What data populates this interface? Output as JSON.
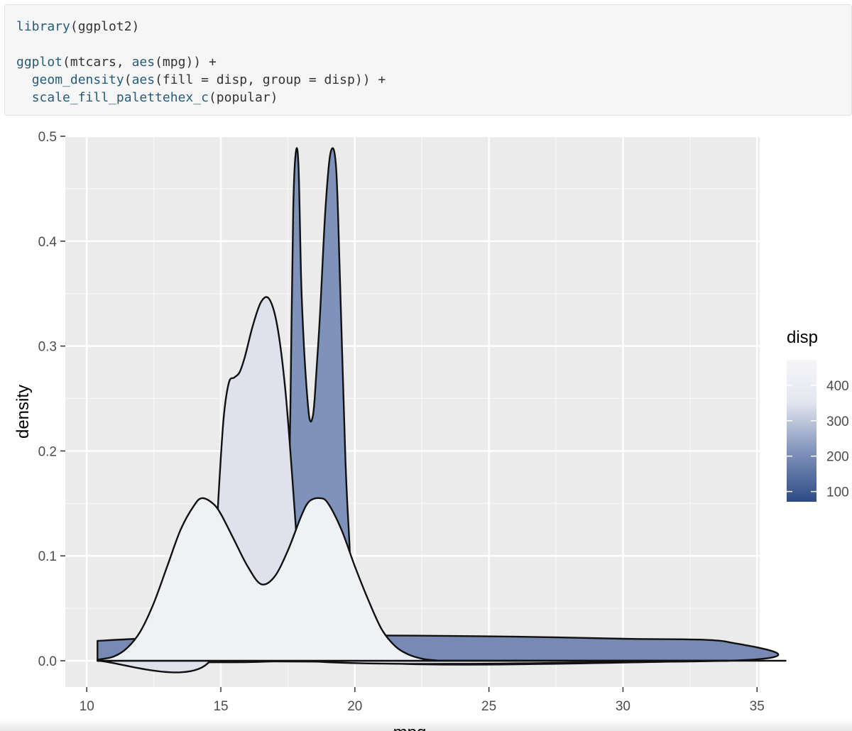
{
  "code": {
    "lines": [
      [
        {
          "t": "library",
          "fn": true
        },
        {
          "t": "(ggplot2)",
          "fn": false
        }
      ],
      [],
      [
        {
          "t": "ggplot",
          "fn": true
        },
        {
          "t": "(mtcars, ",
          "fn": false
        },
        {
          "t": "aes",
          "fn": true
        },
        {
          "t": "(mpg)) +",
          "fn": false
        }
      ],
      [
        {
          "t": "  ",
          "fn": false
        },
        {
          "t": "geom_density",
          "fn": true
        },
        {
          "t": "(",
          "fn": false
        },
        {
          "t": "aes",
          "fn": true
        },
        {
          "t": "(fill = disp, group = disp)) +",
          "fn": false
        }
      ],
      [
        {
          "t": "  ",
          "fn": false
        },
        {
          "t": "scale_fill_palettehex_c",
          "fn": true
        },
        {
          "t": "(popular)",
          "fn": false
        }
      ]
    ]
  },
  "chart_data": {
    "type": "area",
    "xlabel": "mpg",
    "ylabel": "density",
    "xlim": [
      9.2,
      35.1
    ],
    "ylim": [
      -0.025,
      0.5
    ],
    "x_ticks": [
      "10",
      "15",
      "20",
      "25",
      "30",
      "35"
    ],
    "x_tick_values": [
      10,
      15,
      20,
      25,
      30,
      35
    ],
    "y_ticks": [
      "0.0",
      "0.1",
      "0.2",
      "0.3",
      "0.4",
      "0.5"
    ],
    "y_tick_values": [
      0,
      0.1,
      0.2,
      0.3,
      0.4,
      0.5
    ],
    "grid": true,
    "background": "#ebebeb",
    "legend": {
      "title": "disp",
      "position": "right",
      "labels": [
        "400",
        "300",
        "200",
        "100"
      ],
      "label_values": [
        400,
        300,
        200,
        100
      ],
      "range": [
        71.1,
        472
      ],
      "colors": [
        "#2e4b85",
        "#7f92ba",
        "#e3e6ef",
        "#f6f6f8"
      ]
    },
    "series": [
      {
        "fill": "#7889b3",
        "points": [
          [
            10.4,
            0.019
          ],
          [
            12,
            0.021
          ],
          [
            15,
            0.023
          ],
          [
            20,
            0.024
          ],
          [
            22,
            0.024
          ],
          [
            26,
            0.023
          ],
          [
            30,
            0.021
          ],
          [
            33.9,
            0.018
          ],
          [
            33.9,
            0
          ],
          [
            10.4,
            0
          ]
        ]
      },
      {
        "fill": "#7f92ba",
        "points": [
          [
            10.4,
            0
          ],
          [
            17.2,
            0
          ],
          [
            17.35,
            0.02
          ],
          [
            17.5,
            0.1
          ],
          [
            17.6,
            0.25
          ],
          [
            17.7,
            0.43
          ],
          [
            17.8,
            0.485
          ],
          [
            17.9,
            0.47
          ],
          [
            18.0,
            0.36
          ],
          [
            18.1,
            0.3
          ],
          [
            18.2,
            0.26
          ],
          [
            18.3,
            0.232
          ],
          [
            18.4,
            0.23
          ],
          [
            18.5,
            0.25
          ],
          [
            18.7,
            0.33
          ],
          [
            18.9,
            0.43
          ],
          [
            19.1,
            0.485
          ],
          [
            19.3,
            0.47
          ],
          [
            19.45,
            0.36
          ],
          [
            19.65,
            0.19
          ],
          [
            19.8,
            0.11
          ],
          [
            19.9,
            0.05
          ],
          [
            20,
            0
          ],
          [
            33.9,
            0
          ]
        ]
      },
      {
        "fill": "#dfe2ec",
        "points": [
          [
            10.4,
            0
          ],
          [
            14.6,
            0
          ],
          [
            14.9,
            0.15
          ],
          [
            15.1,
            0.23
          ],
          [
            15.3,
            0.265
          ],
          [
            15.5,
            0.27
          ],
          [
            15.7,
            0.275
          ],
          [
            15.9,
            0.29
          ],
          [
            16.2,
            0.32
          ],
          [
            16.5,
            0.342
          ],
          [
            16.8,
            0.345
          ],
          [
            17.1,
            0.32
          ],
          [
            17.4,
            0.26
          ],
          [
            17.65,
            0.18
          ],
          [
            17.9,
            0.09
          ],
          [
            18.05,
            0.04
          ],
          [
            18.2,
            0
          ],
          [
            33.9,
            0
          ]
        ]
      },
      {
        "fill": "#f0f1f5",
        "points": [
          [
            10.4,
            0.001
          ],
          [
            11,
            0.004
          ],
          [
            11.5,
            0.012
          ],
          [
            12,
            0.028
          ],
          [
            12.5,
            0.055
          ],
          [
            13,
            0.09
          ],
          [
            13.5,
            0.125
          ],
          [
            14,
            0.148
          ],
          [
            14.3,
            0.155
          ],
          [
            14.7,
            0.15
          ],
          [
            15,
            0.14
          ],
          [
            15.5,
            0.115
          ],
          [
            16,
            0.09
          ],
          [
            16.5,
            0.073
          ],
          [
            17,
            0.08
          ],
          [
            17.5,
            0.105
          ],
          [
            18,
            0.138
          ],
          [
            18.3,
            0.152
          ],
          [
            18.7,
            0.155
          ],
          [
            19,
            0.15
          ],
          [
            19.5,
            0.125
          ],
          [
            20,
            0.09
          ],
          [
            20.5,
            0.058
          ],
          [
            21,
            0.03
          ],
          [
            21.5,
            0.014
          ],
          [
            22,
            0.006
          ],
          [
            22.5,
            0.002
          ],
          [
            23,
            0.0005
          ],
          [
            24,
            0
          ],
          [
            33.9,
            0
          ],
          [
            33.9,
            0
          ],
          [
            10.4,
            0
          ]
        ]
      }
    ]
  }
}
